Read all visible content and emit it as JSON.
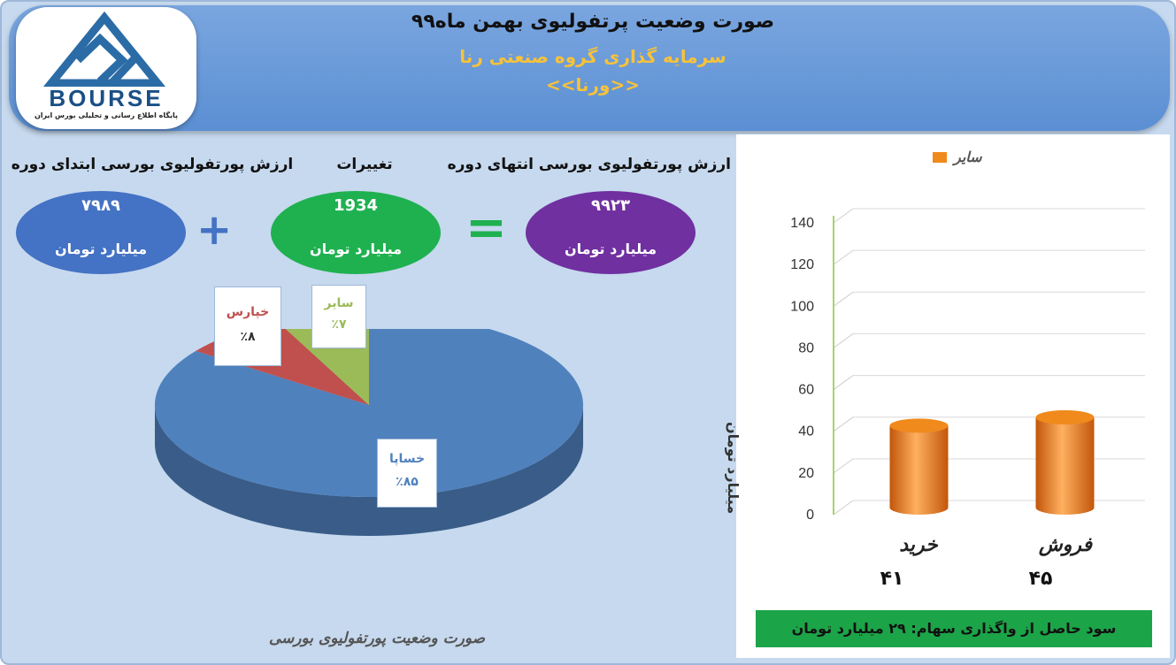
{
  "header": {
    "title": "صورت وضعیت پرتفولیوی بهمن ماه۹۹",
    "subtitle": "سرمایه گذاری گروه صنعتی رنا",
    "ticker": "<<ورنا>>"
  },
  "logo": {
    "word": "BOURSE",
    "tagline": "پایگاه اطلاع رسانی و تحلیلی بورس ایران"
  },
  "summary": {
    "start": {
      "label": "ارزش پورتفولیوی بورسی ابتدای دوره",
      "value": "۷۹۸۹",
      "unit": "میلیارد تومان",
      "color": "#4472c4"
    },
    "change": {
      "label": "تغییرات",
      "value": "1934",
      "unit": "میلیارد تومان",
      "color": "#1fb150"
    },
    "end": {
      "label": "ارزش پورتفولیوی بورسی انتهای دوره",
      "value": "۹۹۲۳",
      "unit": "میلیارد تومان",
      "color": "#7030a0"
    },
    "plus_symbol": "+",
    "equals_symbol": "="
  },
  "pie_caption": "صورت وضعیت پورتفولیوی بورسی",
  "profit_text": "سود حاصل از واگذاری سهام:  ۲۹  میلیارد تومان",
  "chart_data": [
    {
      "type": "pie",
      "title": "",
      "slices": [
        {
          "name": "خساپا",
          "label": "٪۸۵",
          "value": 85,
          "color": "#4f81bd",
          "label_color": "#4f81bd"
        },
        {
          "name": "خپارس",
          "label": "٪۸",
          "value": 8,
          "color": "#c0504d",
          "label_color": "#c0504d"
        },
        {
          "name": "سایر",
          "label": "٪۷",
          "value": 7,
          "color": "#9bbb59",
          "label_color": "#9bbb59"
        }
      ]
    },
    {
      "type": "bar",
      "title": "",
      "ylabel": "میلیارد تومان",
      "ylim": [
        0,
        140
      ],
      "ticks": [
        0,
        20,
        40,
        60,
        80,
        100,
        120,
        140
      ],
      "categories": [
        "خرید",
        "فروش"
      ],
      "value_labels": [
        "۴۱",
        "۴۵"
      ],
      "series": [
        {
          "name": "سایر",
          "values": [
            41,
            45
          ],
          "color": "#f08a1c"
        }
      ],
      "legend": "top"
    }
  ]
}
